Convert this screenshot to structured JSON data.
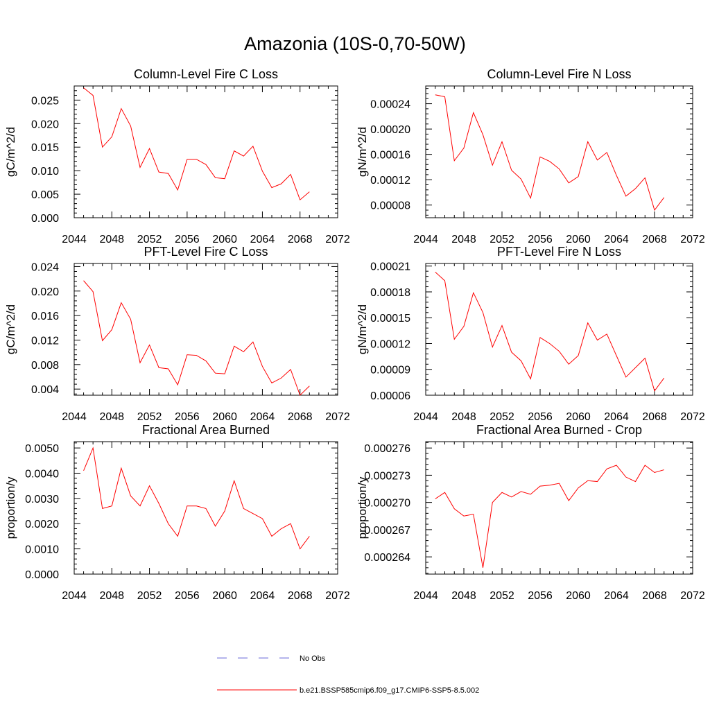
{
  "page": {
    "title": "Amazonia (10S-0,70-50W)"
  },
  "colors": {
    "series": "#ff0000",
    "obs": "#6a6ad8",
    "axis": "#000000"
  },
  "legend": {
    "entries": [
      {
        "label": "No Obs",
        "style": "dashed",
        "color": "#6a6ad8"
      },
      {
        "label": "b.e21.BSSP585cmip6.f09_g17.CMIP6-SSP5-8.5.002",
        "style": "solid",
        "color": "#ff0000"
      }
    ]
  },
  "chart_data": [
    {
      "type": "line",
      "title": "Column-Level Fire C Loss",
      "ylabel": "gC/m^2/d",
      "xlabel": "",
      "xlim": [
        2044,
        2072
      ],
      "ylim": [
        0,
        0.028
      ],
      "xticks": [
        "2044",
        "2048",
        "2052",
        "2056",
        "2060",
        "2064",
        "2068",
        "2072"
      ],
      "yticks": [
        "0.000",
        "0.005",
        "0.010",
        "0.015",
        "0.020",
        "0.025"
      ],
      "x": [
        2045,
        2046,
        2047,
        2048,
        2049,
        2050,
        2051,
        2052,
        2053,
        2054,
        2055,
        2056,
        2057,
        2058,
        2059,
        2060,
        2061,
        2062,
        2063,
        2064,
        2065,
        2066,
        2067,
        2068,
        2069
      ],
      "series": [
        {
          "values": [
            0.0276,
            0.026,
            0.015,
            0.0172,
            0.0232,
            0.0195,
            0.0107,
            0.0147,
            0.0097,
            0.0094,
            0.0059,
            0.0124,
            0.0124,
            0.0113,
            0.0085,
            0.0083,
            0.0142,
            0.0131,
            0.0152,
            0.0099,
            0.0064,
            0.0072,
            0.0092,
            0.0038,
            0.0055
          ]
        }
      ]
    },
    {
      "type": "line",
      "title": "Column-Level Fire N Loss",
      "ylabel": "gN/m^2/d",
      "xlabel": "",
      "xlim": [
        2044,
        2072
      ],
      "ylim": [
        6e-05,
        0.000268
      ],
      "xticks": [
        "2044",
        "2048",
        "2052",
        "2056",
        "2060",
        "2064",
        "2068",
        "2072"
      ],
      "yticks": [
        "0.00008",
        "0.00012",
        "0.00016",
        "0.00020",
        "0.00024"
      ],
      "x": [
        2045,
        2046,
        2047,
        2048,
        2049,
        2050,
        2051,
        2052,
        2053,
        2054,
        2055,
        2056,
        2057,
        2058,
        2059,
        2060,
        2061,
        2062,
        2063,
        2064,
        2065,
        2066,
        2067,
        2068,
        2069
      ],
      "series": [
        {
          "values": [
            0.000254,
            0.000251,
            0.00015,
            0.00017,
            0.000226,
            0.000191,
            0.000143,
            0.00018,
            0.000135,
            0.000121,
            9.1e-05,
            0.000156,
            0.000149,
            0.000137,
            0.000115,
            0.000125,
            0.00018,
            0.000151,
            0.000163,
            0.000127,
            9.4e-05,
            0.000106,
            0.000123,
            7.2e-05,
            9.2e-05
          ]
        }
      ]
    },
    {
      "type": "line",
      "title": "PFT-Level Fire C Loss",
      "ylabel": "gC/m^2/d",
      "xlabel": "",
      "xlim": [
        2044,
        2072
      ],
      "ylim": [
        0.003,
        0.0245
      ],
      "xticks": [
        "2044",
        "2048",
        "2052",
        "2056",
        "2060",
        "2064",
        "2068",
        "2072"
      ],
      "yticks": [
        "0.004",
        "0.008",
        "0.012",
        "0.016",
        "0.020",
        "0.024"
      ],
      "x": [
        2045,
        2046,
        2047,
        2048,
        2049,
        2050,
        2051,
        2052,
        2053,
        2054,
        2055,
        2056,
        2057,
        2058,
        2059,
        2060,
        2061,
        2062,
        2063,
        2064,
        2065,
        2066,
        2067,
        2068,
        2069
      ],
      "series": [
        {
          "values": [
            0.0217,
            0.0199,
            0.0119,
            0.0137,
            0.0181,
            0.0154,
            0.0083,
            0.0112,
            0.0075,
            0.0073,
            0.0047,
            0.0096,
            0.0095,
            0.0086,
            0.0066,
            0.0065,
            0.011,
            0.0101,
            0.0117,
            0.0077,
            0.005,
            0.0058,
            0.0072,
            0.003,
            0.0045
          ]
        }
      ]
    },
    {
      "type": "line",
      "title": "PFT-Level Fire N Loss",
      "ylabel": "gN/m^2/d",
      "xlabel": "",
      "xlim": [
        2044,
        2072
      ],
      "ylim": [
        6e-05,
        0.000213
      ],
      "xticks": [
        "2044",
        "2048",
        "2052",
        "2056",
        "2060",
        "2064",
        "2068",
        "2072"
      ],
      "yticks": [
        "0.00006",
        "0.00009",
        "0.00012",
        "0.00015",
        "0.00018",
        "0.00021"
      ],
      "x": [
        2045,
        2046,
        2047,
        2048,
        2049,
        2050,
        2051,
        2052,
        2053,
        2054,
        2055,
        2056,
        2057,
        2058,
        2059,
        2060,
        2061,
        2062,
        2063,
        2064,
        2065,
        2066,
        2067,
        2068,
        2069
      ],
      "series": [
        {
          "values": [
            0.000203,
            0.000193,
            0.000125,
            0.00014,
            0.000179,
            0.000156,
            0.000116,
            0.000141,
            0.00011,
            0.0001,
            7.9e-05,
            0.000127,
            0.00012,
            0.000111,
            9.6e-05,
            0.000106,
            0.000144,
            0.000124,
            0.000131,
            0.000106,
            8.1e-05,
            9.2e-05,
            0.000103,
            6.5e-05,
            8e-05
          ]
        }
      ]
    },
    {
      "type": "line",
      "title": "Fractional Area Burned",
      "ylabel": "proportion/y",
      "xlabel": "",
      "xlim": [
        2044,
        2072
      ],
      "ylim": [
        0,
        0.00525
      ],
      "xticks": [
        "2044",
        "2048",
        "2052",
        "2056",
        "2060",
        "2064",
        "2068",
        "2072"
      ],
      "yticks": [
        "0.0000",
        "0.0010",
        "0.0020",
        "0.0030",
        "0.0040",
        "0.0050"
      ],
      "x": [
        2045,
        2046,
        2047,
        2048,
        2049,
        2050,
        2051,
        2052,
        2053,
        2054,
        2055,
        2056,
        2057,
        2058,
        2059,
        2060,
        2061,
        2062,
        2063,
        2064,
        2065,
        2066,
        2067,
        2068,
        2069
      ],
      "series": [
        {
          "values": [
            0.0041,
            0.005,
            0.0026,
            0.0027,
            0.0042,
            0.0031,
            0.0027,
            0.0035,
            0.0028,
            0.002,
            0.0015,
            0.0027,
            0.0027,
            0.0026,
            0.0019,
            0.0025,
            0.0037,
            0.0026,
            0.0024,
            0.0022,
            0.0015,
            0.0018,
            0.002,
            0.001,
            0.0015
          ]
        }
      ]
    },
    {
      "type": "line",
      "title": "Fractional Area Burned - Crop",
      "ylabel": "proportion/y",
      "xlabel": "",
      "xlim": [
        2044,
        2072
      ],
      "ylim": [
        0.0002621,
        0.0002767
      ],
      "xticks": [
        "2044",
        "2048",
        "2052",
        "2056",
        "2060",
        "2064",
        "2068",
        "2072"
      ],
      "yticks": [
        "0.000264",
        "0.000267",
        "0.000270",
        "0.000273",
        "0.000276"
      ],
      "x": [
        2045,
        2046,
        2047,
        2048,
        2049,
        2050,
        2051,
        2052,
        2053,
        2054,
        2055,
        2056,
        2057,
        2058,
        2059,
        2060,
        2061,
        2062,
        2063,
        2064,
        2065,
        2066,
        2067,
        2068,
        2069
      ],
      "series": [
        {
          "values": [
            0.0002704,
            0.0002711,
            0.0002693,
            0.0002685,
            0.0002687,
            0.0002628,
            0.00027,
            0.0002711,
            0.0002706,
            0.0002712,
            0.0002709,
            0.0002718,
            0.0002719,
            0.0002721,
            0.0002702,
            0.0002716,
            0.0002724,
            0.0002723,
            0.0002737,
            0.0002741,
            0.0002728,
            0.0002723,
            0.0002741,
            0.0002733,
            0.0002736
          ]
        }
      ]
    }
  ]
}
